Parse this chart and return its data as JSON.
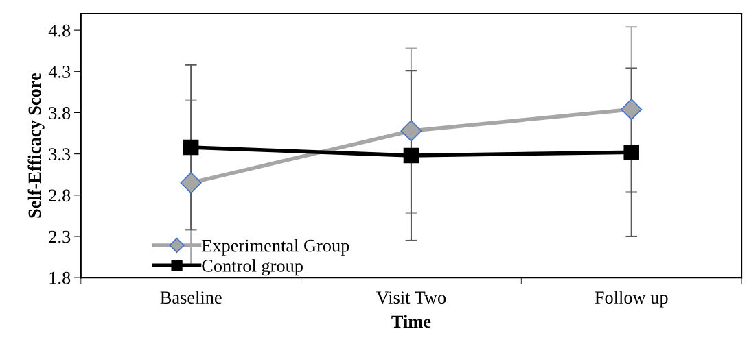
{
  "chart_data": {
    "type": "line",
    "xlabel": "Time",
    "ylabel": "Self-Efficacy Score",
    "categories": [
      "Baseline",
      "Visit Two",
      "Follow up"
    ],
    "series": [
      {
        "name": "Experimental Group",
        "color": "#a6a6a6",
        "marker": "diamond",
        "values": [
          2.95,
          3.58,
          3.84
        ],
        "errors": [
          1.0,
          1.0,
          1.0
        ]
      },
      {
        "name": "Control group",
        "color": "#000000",
        "marker": "square",
        "values": [
          3.38,
          3.28,
          3.32
        ],
        "errors": [
          1.0,
          1.03,
          1.02
        ]
      }
    ],
    "ylim": [
      1.8,
      5.0
    ],
    "yticks": [
      1.8,
      2.3,
      2.8,
      3.3,
      3.8,
      4.3,
      4.8
    ],
    "legend": "bottom left",
    "grid": false
  }
}
